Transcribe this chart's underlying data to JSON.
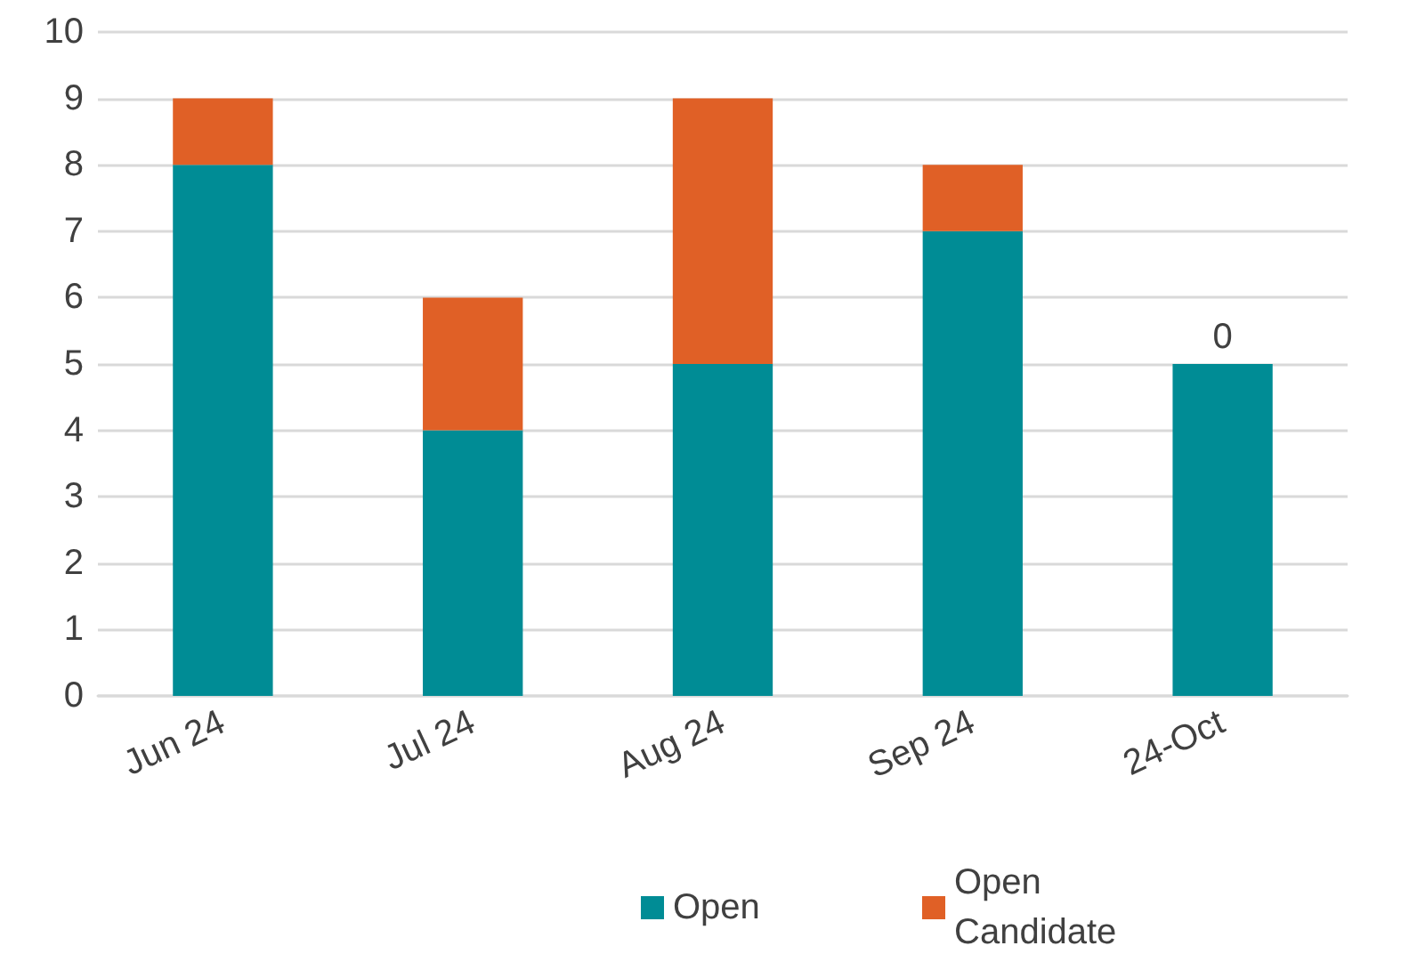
{
  "chart_data": {
    "type": "bar",
    "stacked": true,
    "categories": [
      "Jun 24",
      "Jul 24",
      "Aug 24",
      "Sep 24",
      "24-Oct"
    ],
    "series": [
      {
        "name": "Open",
        "color": "#008c95",
        "values": [
          8,
          4,
          5,
          7,
          5
        ]
      },
      {
        "name": "Open Candidate",
        "color": "#e06026",
        "values": [
          1,
          2,
          4,
          1,
          0
        ],
        "value_labels": [
          null,
          null,
          null,
          null,
          "0"
        ]
      }
    ],
    "ylim": [
      0,
      10
    ],
    "yticks": [
      0,
      1,
      2,
      3,
      4,
      5,
      6,
      7,
      8,
      9,
      10
    ],
    "grid": "y",
    "legend": "bottom"
  }
}
